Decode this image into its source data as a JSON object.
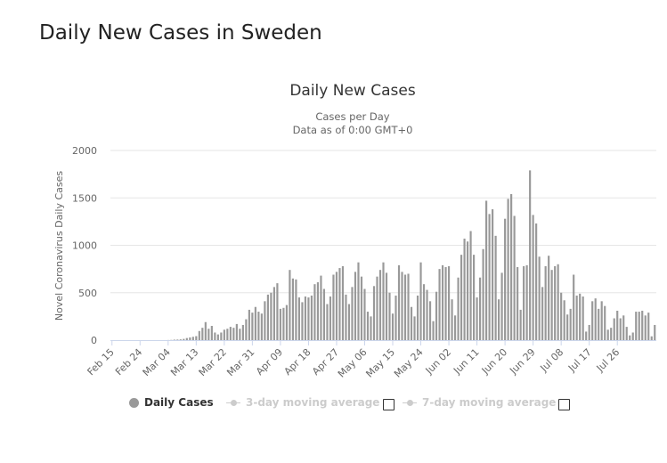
{
  "page": {
    "title": "Daily New Cases in Sweden"
  },
  "legend": {
    "daily_cases": "Daily Cases",
    "avg3": "3-day moving average",
    "avg7": "7-day moving average"
  },
  "colors": {
    "bars": "#999999",
    "grid": "#e6e6e6",
    "axis_line": "#ccd6eb",
    "legend_inactive": "#cccccc"
  },
  "chart_data": {
    "type": "bar",
    "title": "Daily New Cases",
    "subtitle_lines": [
      "Cases per Day",
      "Data as of 0:00 GMT+0"
    ],
    "xlabel": "",
    "ylabel": "Novel Coronavirus Daily Cases",
    "ylim": [
      0,
      2000
    ],
    "yticks": [
      0,
      500,
      1000,
      1500,
      2000
    ],
    "date_start": "Feb 15",
    "x_tick_labels": [
      "Feb 15",
      "Feb 24",
      "Mar 04",
      "Mar 13",
      "Mar 22",
      "Mar 31",
      "Apr 09",
      "Apr 18",
      "Apr 27",
      "May 06",
      "May 15",
      "May 24",
      "Jun 02",
      "Jun 11",
      "Jun 20",
      "Jun 29",
      "Jul 08",
      "Jul 17",
      "Jul 26"
    ],
    "x_tick_every_days": 9,
    "series": [
      {
        "name": "Daily Cases",
        "values": [
          0,
          0,
          0,
          0,
          0,
          0,
          0,
          0,
          0,
          0,
          0,
          0,
          0,
          0,
          0,
          0,
          0,
          0,
          1,
          2,
          5,
          6,
          8,
          13,
          22,
          28,
          35,
          42,
          96,
          130,
          190,
          120,
          150,
          80,
          60,
          80,
          110,
          120,
          140,
          130,
          170,
          120,
          160,
          220,
          320,
          290,
          350,
          300,
          280,
          410,
          480,
          500,
          560,
          600,
          330,
          340,
          370,
          740,
          650,
          640,
          450,
          400,
          460,
          450,
          470,
          590,
          610,
          680,
          540,
          380,
          460,
          690,
          720,
          760,
          780,
          480,
          380,
          560,
          720,
          820,
          670,
          540,
          300,
          250,
          570,
          670,
          740,
          820,
          710,
          500,
          280,
          470,
          790,
          720,
          690,
          700,
          350,
          250,
          470,
          820,
          590,
          530,
          410,
          200,
          510,
          750,
          790,
          770,
          780,
          430,
          260,
          660,
          900,
          1070,
          1040,
          1150,
          900,
          450,
          660,
          960,
          1470,
          1330,
          1380,
          1100,
          430,
          710,
          1280,
          1490,
          1540,
          1310,
          770,
          320,
          780,
          790,
          1790,
          1320,
          1230,
          880,
          560,
          780,
          890,
          740,
          780,
          800,
          500,
          420,
          270,
          330,
          690,
          470,
          490,
          460,
          90,
          160,
          410,
          440,
          330,
          410,
          360,
          110,
          130,
          230,
          310,
          230,
          260,
          140,
          50,
          80,
          300,
          300,
          310,
          260,
          290,
          40,
          160
        ]
      }
    ]
  }
}
